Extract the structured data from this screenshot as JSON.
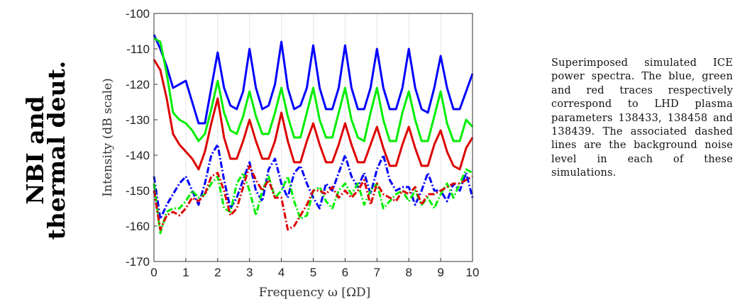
{
  "side_title": [
    "NBI and",
    "thermal deut."
  ],
  "caption": "Superimposed simulated ICE power spectra. The blue, green and red traces respectively correspond to LHD plasma parameters 138433, 138458 and 138439. The associated dashed lines are the background noise level in each of these simulations.",
  "chart_data": {
    "type": "line",
    "xlabel": "Frequency ω [ΩD]",
    "ylabel": "Intensity (dB scale)",
    "xlim": [
      0,
      10
    ],
    "ylim": [
      -170,
      -100
    ],
    "xticks": [
      0,
      1,
      2,
      3,
      4,
      5,
      6,
      7,
      8,
      9,
      10
    ],
    "yticks": [
      -100,
      -110,
      -120,
      -130,
      -140,
      -150,
      -160,
      -170
    ],
    "grid": "vertical",
    "x": [
      0.0,
      0.2,
      0.4,
      0.6,
      0.8,
      1.0,
      1.2,
      1.4,
      1.6,
      1.8,
      2.0,
      2.2,
      2.4,
      2.6,
      2.8,
      3.0,
      3.2,
      3.4,
      3.6,
      3.8,
      4.0,
      4.2,
      4.4,
      4.6,
      4.8,
      5.0,
      5.2,
      5.4,
      5.6,
      5.8,
      6.0,
      6.2,
      6.4,
      6.6,
      6.8,
      7.0,
      7.2,
      7.4,
      7.6,
      7.8,
      8.0,
      8.2,
      8.4,
      8.6,
      8.8,
      9.0,
      9.2,
      9.4,
      9.6,
      9.8,
      10.0
    ],
    "series": [
      {
        "color": "#0000ff",
        "style": "solid",
        "values": [
          -106,
          -110,
          -115,
          -121,
          -120,
          -119,
          -125,
          -131,
          -131,
          -121,
          -111,
          -121,
          -126,
          -127,
          -122,
          -110,
          -121,
          -127,
          -126,
          -120,
          -108,
          -121,
          -127,
          -126,
          -121,
          -109,
          -121,
          -127,
          -127,
          -121,
          -109,
          -121,
          -127,
          -127,
          -121,
          -110,
          -121,
          -127,
          -127,
          -121,
          -110,
          -121,
          -127,
          -128,
          -121,
          -112,
          -121,
          -127,
          -127,
          -122,
          -117
        ]
      },
      {
        "color": "#00ee00",
        "style": "solid",
        "values": [
          -107,
          -108,
          -117,
          -128,
          -130,
          -131,
          -133,
          -136,
          -134,
          -127,
          -119,
          -128,
          -133,
          -134,
          -129,
          -122,
          -129,
          -134,
          -134,
          -128,
          -121,
          -129,
          -135,
          -135,
          -128,
          -121,
          -130,
          -135,
          -135,
          -128,
          -121,
          -130,
          -135,
          -136,
          -128,
          -121,
          -130,
          -136,
          -136,
          -128,
          -122,
          -130,
          -136,
          -136,
          -129,
          -122,
          -131,
          -136,
          -136,
          -130,
          -132
        ]
      },
      {
        "color": "#dd0000",
        "style": "solid",
        "values": [
          -113,
          -116,
          -124,
          -134,
          -137,
          -139,
          -141,
          -144,
          -139,
          -131,
          -124,
          -135,
          -141,
          -141,
          -136,
          -130,
          -136,
          -141,
          -141,
          -136,
          -128,
          -136,
          -142,
          -142,
          -136,
          -131,
          -137,
          -142,
          -142,
          -137,
          -131,
          -137,
          -142,
          -142,
          -137,
          -132,
          -138,
          -143,
          -143,
          -137,
          -132,
          -138,
          -143,
          -143,
          -137,
          -133,
          -139,
          -143,
          -144,
          -138,
          -135
        ]
      },
      {
        "color": "#0000ff",
        "style": "dashed",
        "values": [
          -146,
          -158,
          -154,
          -151,
          -148,
          -146,
          -150,
          -154,
          -148,
          -140,
          -137,
          -147,
          -155,
          -152,
          -147,
          -142,
          -150,
          -153,
          -144,
          -141,
          -148,
          -152,
          -145,
          -143,
          -148,
          -152,
          -155,
          -148,
          -150,
          -145,
          -140,
          -146,
          -149,
          -145,
          -151,
          -144,
          -140,
          -147,
          -150,
          -149,
          -149,
          -154,
          -150,
          -145,
          -150,
          -150,
          -153,
          -148,
          -150,
          -145,
          -152
        ]
      },
      {
        "color": "#00ee00",
        "style": "dashed",
        "values": [
          -148,
          -162,
          -156,
          -155,
          -155,
          -153,
          -150,
          -152,
          -151,
          -148,
          -146,
          -155,
          -156,
          -148,
          -145,
          -150,
          -157,
          -150,
          -146,
          -152,
          -150,
          -146,
          -153,
          -158,
          -157,
          -150,
          -149,
          -153,
          -155,
          -150,
          -148,
          -151,
          -148,
          -154,
          -150,
          -148,
          -155,
          -153,
          -151,
          -150,
          -153,
          -150,
          -154,
          -152,
          -155,
          -151,
          -148,
          -152,
          -148,
          -144,
          -145
        ]
      },
      {
        "color": "#dd0000",
        "style": "dashed",
        "values": [
          -150,
          -161,
          -157,
          -156,
          -157,
          -155,
          -152,
          -153,
          -151,
          -146,
          -145,
          -150,
          -157,
          -155,
          -149,
          -143,
          -147,
          -150,
          -147,
          -152,
          -152,
          -161,
          -160,
          -157,
          -154,
          -150,
          -150,
          -151,
          -149,
          -152,
          -150,
          -152,
          -150,
          -147,
          -154,
          -148,
          -151,
          -152,
          -153,
          -150,
          -151,
          -149,
          -154,
          -151,
          -151,
          -150,
          -149,
          -148,
          -148,
          -147,
          -146
        ]
      }
    ]
  }
}
